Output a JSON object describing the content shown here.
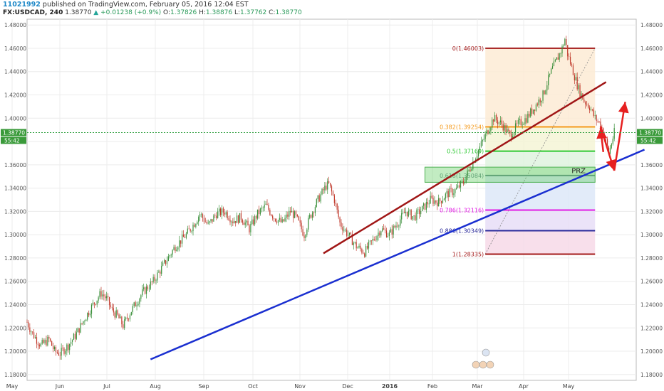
{
  "header": {
    "user_id": "11021992",
    "published": "published on TradingView.com, February 05, 2016 12:04 EST",
    "symbol": "FX:USDCAD, 240",
    "last": "1.38770",
    "change": "+0.01238 (+0.9%)",
    "open_label": "O:",
    "open": "1.37826",
    "high_label": "H:",
    "high": "1.38876",
    "low_label": "L:",
    "low": "1.37762",
    "close_label": "C:",
    "close": "1.38770"
  },
  "chart_data": {
    "type": "line",
    "symbol": "FX:USDCAD",
    "interval": "240",
    "ylim": [
      1.175,
      1.485
    ],
    "y_ticks": [
      "1.48000",
      "1.46000",
      "1.44000",
      "1.42000",
      "1.40000",
      "1.38000",
      "1.36000",
      "1.34000",
      "1.32000",
      "1.30000",
      "1.28000",
      "1.26000",
      "1.24000",
      "1.22000",
      "1.20000",
      "1.18000"
    ],
    "x_ticks": [
      "May",
      "Jun",
      "Jul",
      "Aug",
      "Sep",
      "Oct",
      "Nov",
      "Dec",
      "2016",
      "Feb",
      "Mar",
      "Apr",
      "May"
    ],
    "price_path": [
      [
        0,
        1.225
      ],
      [
        2,
        1.215
      ],
      [
        5,
        1.205
      ],
      [
        8,
        1.21
      ],
      [
        10,
        1.2
      ],
      [
        12,
        1.198
      ],
      [
        15,
        1.205
      ],
      [
        18,
        1.215
      ],
      [
        21,
        1.228
      ],
      [
        24,
        1.24
      ],
      [
        27,
        1.25
      ],
      [
        29,
        1.245
      ],
      [
        31,
        1.235
      ],
      [
        33,
        1.23
      ],
      [
        35,
        1.222
      ],
      [
        38,
        1.235
      ],
      [
        42,
        1.25
      ],
      [
        46,
        1.26
      ],
      [
        50,
        1.275
      ],
      [
        54,
        1.29
      ],
      [
        58,
        1.3
      ],
      [
        61,
        1.31
      ],
      [
        63,
        1.318
      ],
      [
        66,
        1.308
      ],
      [
        69,
        1.318
      ],
      [
        72,
        1.32
      ],
      [
        75,
        1.312
      ],
      [
        78,
        1.315
      ],
      [
        81,
        1.305
      ],
      [
        84,
        1.318
      ],
      [
        87,
        1.325
      ],
      [
        90,
        1.315
      ],
      [
        93,
        1.31
      ],
      [
        96,
        1.32
      ],
      [
        98,
        1.315
      ],
      [
        101,
        1.3
      ],
      [
        103,
        1.315
      ],
      [
        106,
        1.33
      ],
      [
        109,
        1.342
      ],
      [
        110,
        1.343
      ],
      [
        112,
        1.33
      ],
      [
        114,
        1.31
      ],
      [
        117,
        1.3
      ],
      [
        120,
        1.29
      ],
      [
        123,
        1.285
      ],
      [
        126,
        1.295
      ],
      [
        129,
        1.305
      ],
      [
        132,
        1.3
      ],
      [
        135,
        1.31
      ],
      [
        138,
        1.32
      ],
      [
        141,
        1.315
      ],
      [
        144,
        1.322
      ],
      [
        147,
        1.33
      ],
      [
        150,
        1.328
      ],
      [
        153,
        1.335
      ],
      [
        156,
        1.338
      ],
      [
        159,
        1.345
      ],
      [
        162,
        1.36
      ],
      [
        165,
        1.375
      ],
      [
        168,
        1.39
      ],
      [
        170,
        1.4
      ],
      [
        173,
        1.395
      ],
      [
        176,
        1.385
      ],
      [
        179,
        1.395
      ],
      [
        182,
        1.4
      ],
      [
        185,
        1.41
      ],
      [
        188,
        1.42
      ],
      [
        191,
        1.44
      ],
      [
        193,
        1.45
      ],
      [
        195,
        1.46
      ],
      [
        196,
        1.468
      ],
      [
        197,
        1.455
      ],
      [
        199,
        1.44
      ],
      [
        201,
        1.425
      ],
      [
        203,
        1.415
      ],
      [
        205,
        1.41
      ],
      [
        207,
        1.4
      ],
      [
        209,
        1.395
      ],
      [
        211,
        1.38
      ],
      [
        212,
        1.37
      ],
      [
        214,
        1.3877
      ]
    ],
    "price_label": "1.38770",
    "countdown_label": "55:42",
    "annotations": {
      "fibonacci": [
        {
          "label": "0(1.46003)",
          "value": 1.46003,
          "color": "#a31a1a"
        },
        {
          "label": "0.382(1.39254)",
          "value": 1.39254,
          "color": "#f59a1b"
        },
        {
          "label": "0.5(1.37169)",
          "value": 1.37169,
          "color": "#2ec933"
        },
        {
          "label": "0.618(1.35084)",
          "value": 1.35084,
          "color": "#6a8f8a"
        },
        {
          "label": "0.786(1.32116)",
          "value": 1.32116,
          "color": "#e21ae4"
        },
        {
          "label": "0.886(1.30349)",
          "value": 1.30349,
          "color": "#2a2a9a"
        },
        {
          "label": "1(1.28335)",
          "value": 1.28335,
          "color": "#a31a1a"
        }
      ],
      "prz_label": "PRZ",
      "prz_zone": [
        1.345,
        1.358
      ],
      "blue_trendline": {
        "color": "#1a2fd0"
      },
      "red_trendline": {
        "color": "#a01616"
      },
      "arrows_color": "#e62020"
    }
  }
}
